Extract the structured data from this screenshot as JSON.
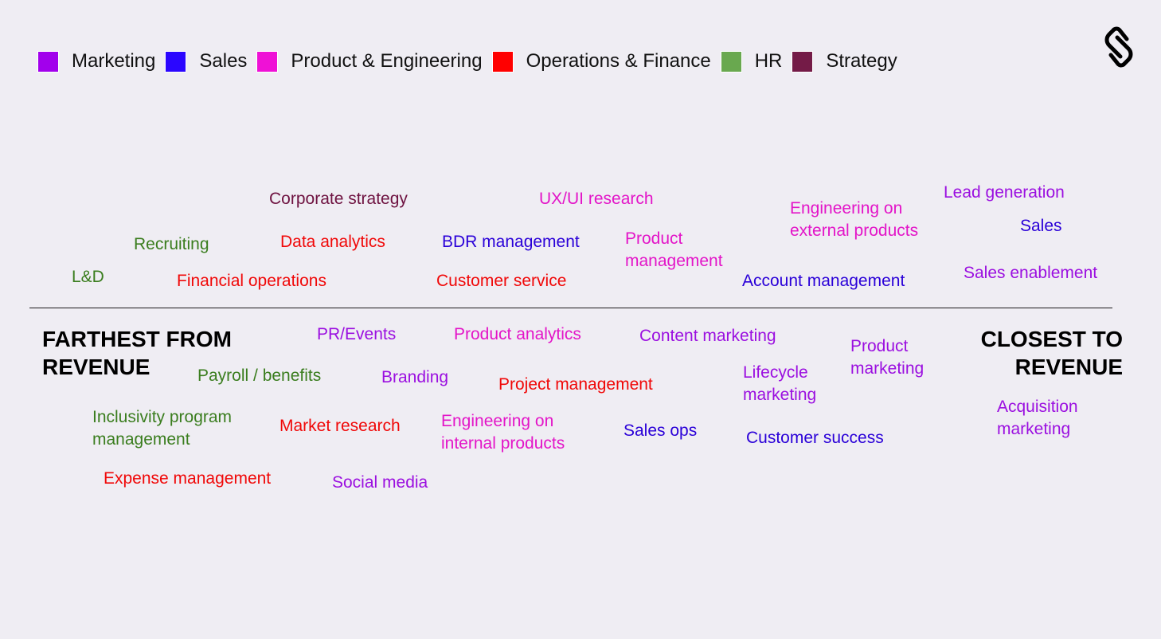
{
  "legend": [
    {
      "label": "Marketing",
      "color": "#a200ec"
    },
    {
      "label": "Sales",
      "color": "#2b06ff"
    },
    {
      "label": "Product & Engineering",
      "color": "#ef11d6"
    },
    {
      "label": "Operations & Finance",
      "color": "#ff0000"
    },
    {
      "label": "HR",
      "color": "#69a84f"
    },
    {
      "label": "Strategy",
      "color": "#741b47"
    }
  ],
  "axis": {
    "left_label": [
      "FARTHEST FROM",
      "REVENUE"
    ],
    "right_label": [
      "CLOSEST TO",
      "REVENUE"
    ]
  },
  "functions_above": [
    {
      "text": "Corporate strategy",
      "category": "Strategy"
    },
    {
      "text": "UX/UI research",
      "category": "Product & Engineering"
    },
    {
      "text": "Engineering on external products",
      "category": "Product & Engineering"
    },
    {
      "text": "Lead generation",
      "category": "Marketing"
    },
    {
      "text": "Recruiting",
      "category": "HR"
    },
    {
      "text": "Data analytics",
      "category": "Operations & Finance"
    },
    {
      "text": "BDR management",
      "category": "Sales"
    },
    {
      "text": "Product management",
      "category": "Product & Engineering"
    },
    {
      "text": "Sales",
      "category": "Sales"
    },
    {
      "text": "L&D",
      "category": "HR"
    },
    {
      "text": "Financial operations",
      "category": "Operations & Finance"
    },
    {
      "text": "Customer service",
      "category": "Operations & Finance"
    },
    {
      "text": "Account management",
      "category": "Sales"
    },
    {
      "text": "Sales enablement",
      "category": "Marketing"
    }
  ],
  "functions_below": [
    {
      "text": "PR/Events",
      "category": "Marketing"
    },
    {
      "text": "Product analytics",
      "category": "Product & Engineering"
    },
    {
      "text": "Content marketing",
      "category": "Marketing"
    },
    {
      "text": "Product marketing",
      "category": "Marketing"
    },
    {
      "text": "Payroll / benefits",
      "category": "HR"
    },
    {
      "text": "Branding",
      "category": "Marketing"
    },
    {
      "text": "Project management",
      "category": "Operations & Finance"
    },
    {
      "text": "Lifecycle marketing",
      "category": "Marketing"
    },
    {
      "text": "Inclusivity program management",
      "category": "HR"
    },
    {
      "text": "Market research",
      "category": "Operations & Finance"
    },
    {
      "text": "Engineering on internal products",
      "category": "Product & Engineering"
    },
    {
      "text": "Sales ops",
      "category": "Sales"
    },
    {
      "text": "Customer success",
      "category": "Sales"
    },
    {
      "text": "Acquisition marketing",
      "category": "Marketing"
    },
    {
      "text": "Expense management",
      "category": "Operations & Finance"
    },
    {
      "text": "Social media",
      "category": "Marketing"
    }
  ]
}
